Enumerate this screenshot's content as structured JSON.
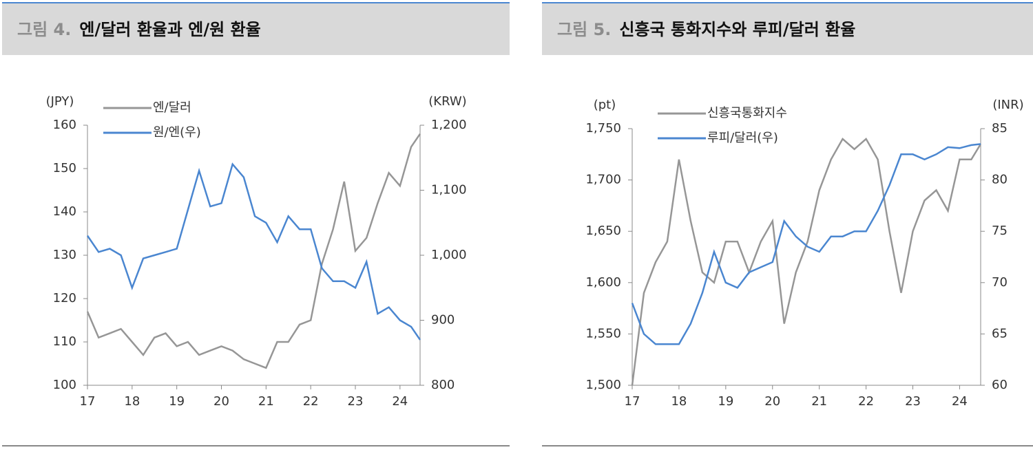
{
  "chart_data": [
    {
      "type": "line",
      "figure_label": "그림 4.",
      "title": "엔/달러 환율과 엔/원 환율",
      "y_label": "(JPY)",
      "y2_label": "(KRW)",
      "x": [
        17,
        17.25,
        17.5,
        17.75,
        18,
        18.25,
        18.5,
        18.75,
        19,
        19.25,
        19.5,
        19.75,
        20,
        20.25,
        20.5,
        20.75,
        21,
        21.25,
        21.5,
        21.75,
        22,
        22.25,
        22.5,
        22.75,
        23,
        23.25,
        23.5,
        23.75,
        24,
        24.25,
        24.45
      ],
      "xlim": [
        17,
        24.45
      ],
      "xticks": [
        17,
        18,
        19,
        20,
        21,
        22,
        23,
        24
      ],
      "ylim": [
        100,
        160
      ],
      "yticks": [
        100,
        110,
        120,
        130,
        140,
        150,
        160
      ],
      "y2lim": [
        800,
        1200
      ],
      "y2ticks": [
        800,
        900,
        {
          "value": 1000,
          "label": "1,000"
        },
        {
          "value": 1100,
          "label": "1,100"
        },
        {
          "value": 1200,
          "label": "1,200"
        }
      ],
      "series": [
        {
          "name": "엔/달러",
          "color": "#969696",
          "values": [
            117,
            111,
            112,
            113,
            110,
            107,
            111,
            112,
            109,
            110,
            107,
            108,
            109,
            108,
            106,
            105,
            104,
            110,
            110,
            114,
            115,
            128,
            136,
            147,
            131,
            134,
            142,
            149,
            146,
            155,
            158
          ]
        },
        {
          "name": "원/엔(우)",
          "color": "#4a86d0",
          "axis": "y2",
          "values": [
            1030,
            1005,
            1010,
            1000,
            950,
            995,
            1000,
            1005,
            1010,
            1070,
            1130,
            1075,
            1080,
            1140,
            1120,
            1060,
            1050,
            1020,
            1060,
            1040,
            1040,
            980,
            960,
            960,
            950,
            990,
            910,
            920,
            900,
            890,
            870
          ]
        }
      ]
    },
    {
      "type": "line",
      "figure_label": "그림 5.",
      "title": "신흥국 통화지수와 루피/달러 환율",
      "y_label": "(pt)",
      "y2_label": "(INR)",
      "x": [
        17,
        17.25,
        17.5,
        17.75,
        18,
        18.25,
        18.5,
        18.75,
        19,
        19.25,
        19.5,
        19.75,
        20,
        20.25,
        20.5,
        20.75,
        21,
        21.25,
        21.5,
        21.75,
        22,
        22.25,
        22.5,
        22.75,
        23,
        23.25,
        23.5,
        23.75,
        24,
        24.25,
        24.45
      ],
      "xlim": [
        17,
        24.45
      ],
      "xticks": [
        17,
        18,
        19,
        20,
        21,
        22,
        23,
        24
      ],
      "ylim": [
        1500,
        1750
      ],
      "yticks": [
        {
          "value": 1500,
          "label": "1,500"
        },
        {
          "value": 1550,
          "label": "1,550"
        },
        {
          "value": 1600,
          "label": "1,600"
        },
        {
          "value": 1650,
          "label": "1,650"
        },
        {
          "value": 1700,
          "label": "1,700"
        },
        {
          "value": 1750,
          "label": "1,750"
        }
      ],
      "y2lim": [
        60,
        85
      ],
      "y2ticks": [
        60,
        65,
        70,
        75,
        80,
        85
      ],
      "series": [
        {
          "name": "신흥국통화지수",
          "color": "#969696",
          "values": [
            1500,
            1590,
            1620,
            1640,
            1720,
            1660,
            1610,
            1600,
            1640,
            1640,
            1610,
            1640,
            1660,
            1560,
            1610,
            1640,
            1690,
            1720,
            1740,
            1730,
            1740,
            1720,
            1650,
            1590,
            1650,
            1680,
            1690,
            1670,
            1720,
            1720,
            1735
          ]
        },
        {
          "name": "루피/달러(우)",
          "color": "#4a86d0",
          "axis": "y2",
          "values": [
            68,
            65,
            64,
            64,
            64,
            66,
            69,
            73,
            70,
            69.5,
            71,
            71.5,
            72,
            76,
            74.5,
            73.5,
            73,
            74.5,
            74.5,
            75,
            75,
            77,
            79.5,
            82.5,
            82.5,
            82,
            82.5,
            83.2,
            83.1,
            83.4,
            83.5
          ]
        }
      ]
    }
  ]
}
